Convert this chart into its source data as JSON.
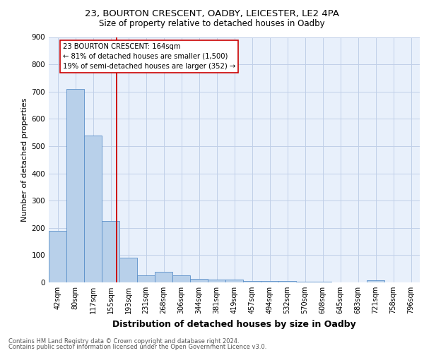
{
  "title1": "23, BOURTON CRESCENT, OADBY, LEICESTER, LE2 4PA",
  "title2": "Size of property relative to detached houses in Oadby",
  "xlabel": "Distribution of detached houses by size in Oadby",
  "ylabel": "Number of detached properties",
  "bin_labels": [
    "42sqm",
    "80sqm",
    "117sqm",
    "155sqm",
    "193sqm",
    "231sqm",
    "268sqm",
    "306sqm",
    "344sqm",
    "381sqm",
    "419sqm",
    "457sqm",
    "494sqm",
    "532sqm",
    "570sqm",
    "608sqm",
    "645sqm",
    "683sqm",
    "721sqm",
    "758sqm",
    "796sqm"
  ],
  "bar_heights": [
    188,
    710,
    540,
    225,
    90,
    27,
    38,
    25,
    13,
    11,
    11,
    6,
    6,
    6,
    3,
    3,
    0,
    0,
    8,
    0,
    0
  ],
  "bar_color": "#b8d0ea",
  "bar_edge_color": "#5b8fc9",
  "ylim": [
    0,
    900
  ],
  "yticks": [
    0,
    100,
    200,
    300,
    400,
    500,
    600,
    700,
    800,
    900
  ],
  "red_line_x": 3.35,
  "property_line_label": "23 BOURTON CRESCENT: 164sqm",
  "annotation_line1": "← 81% of detached houses are smaller (1,500)",
  "annotation_line2": "19% of semi-detached houses are larger (352) →",
  "red_line_color": "#cc0000",
  "annotation_box_facecolor": "#ffffff",
  "annotation_box_edgecolor": "#cc0000",
  "footer1": "Contains HM Land Registry data © Crown copyright and database right 2024.",
  "footer2": "Contains public sector information licensed under the Open Government Licence v3.0.",
  "fig_facecolor": "#ffffff",
  "plot_facecolor": "#e8f0fb",
  "grid_color": "#c0cfe8",
  "title1_fontsize": 9.5,
  "title2_fontsize": 8.5,
  "ylabel_fontsize": 8,
  "xlabel_fontsize": 9,
  "tick_fontsize": 7,
  "footer_fontsize": 6,
  "annot_fontsize": 7.2
}
